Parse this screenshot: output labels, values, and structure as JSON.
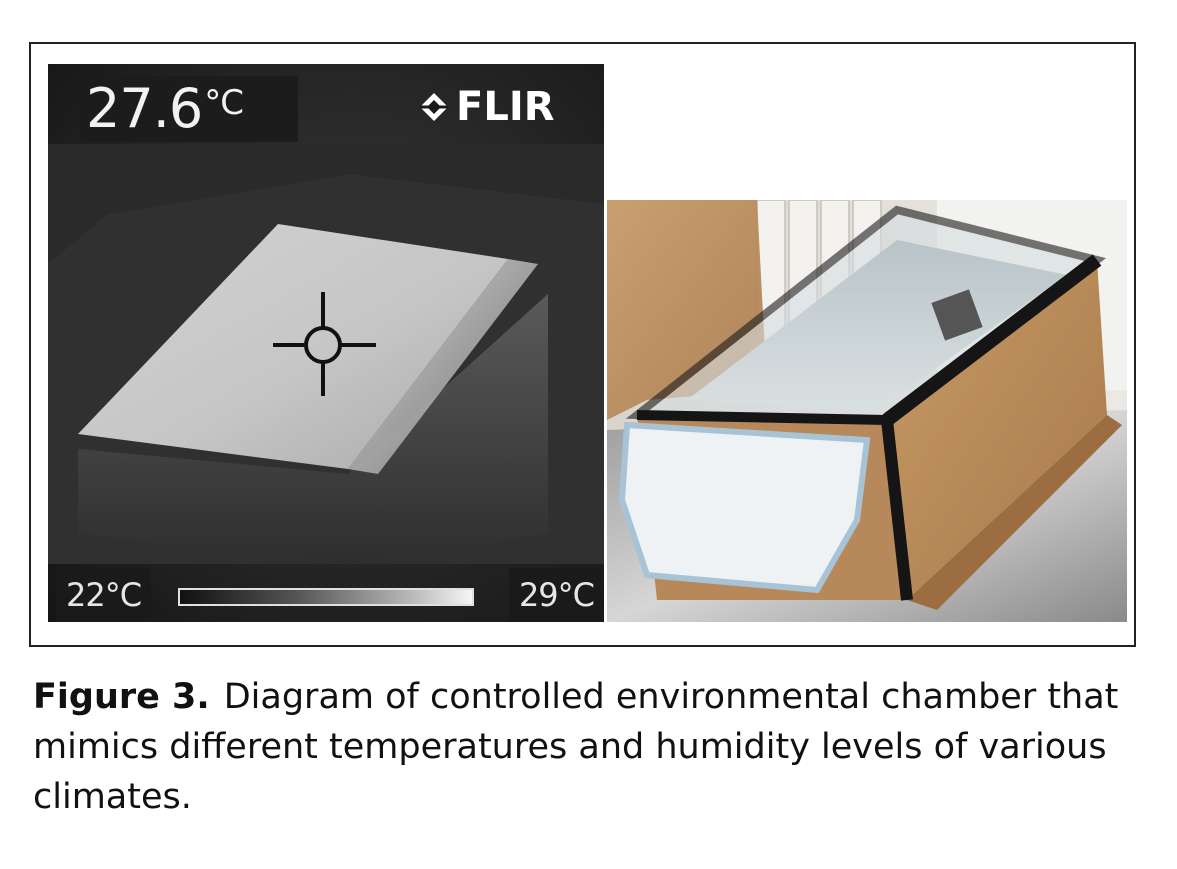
{
  "thermal_image": {
    "temperature_value": "27.6",
    "temperature_unit": "°C",
    "brand": "FLIR",
    "scale_min": "22°C",
    "scale_max": "29°C"
  },
  "caption": {
    "label": "Figure 3.",
    "text": "Diagram of controlled environmental chamber that mimics different temperatures and humidity levels of various climates."
  },
  "icons": [
    "crosshair-icon",
    "flir-diamond-icon"
  ]
}
